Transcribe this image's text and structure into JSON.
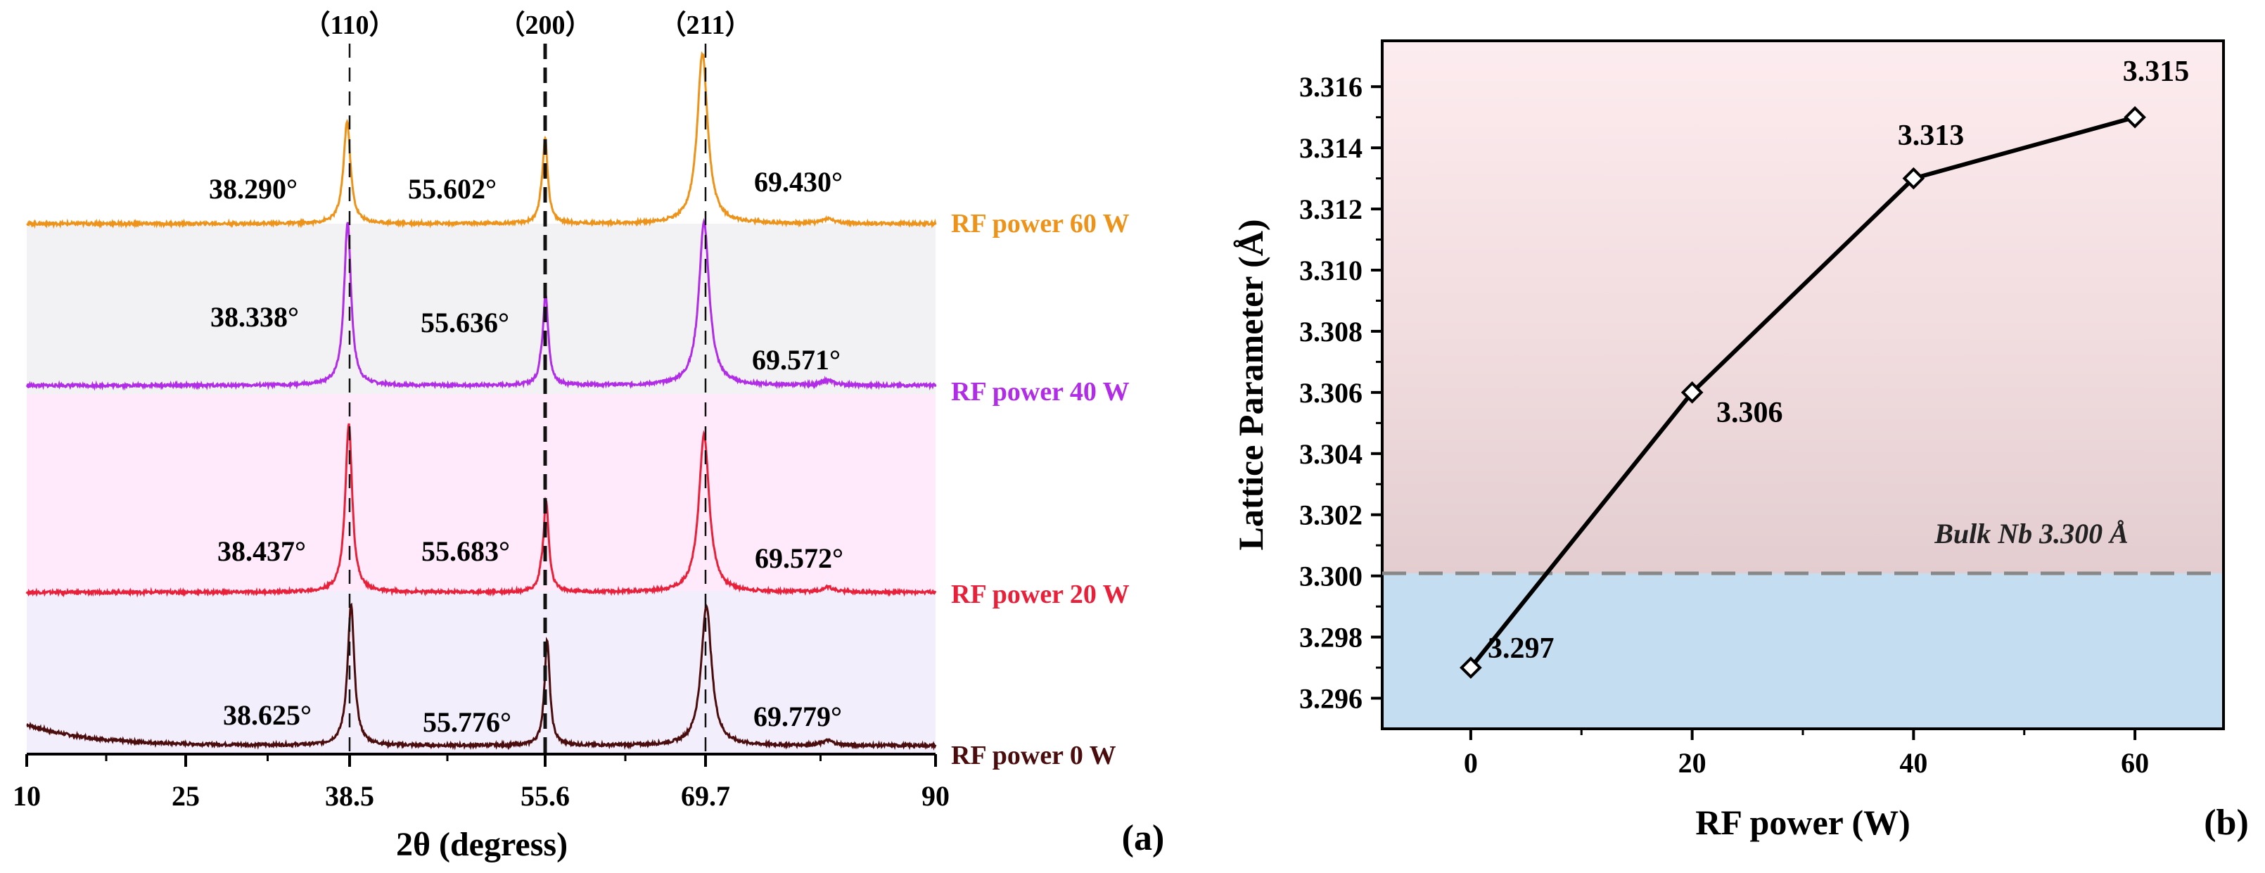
{
  "chart_data": [
    {
      "type": "line",
      "panel_label": "(a)",
      "xlabel": "2θ (degress)",
      "xlim": [
        10,
        90
      ],
      "xticks": [
        10,
        25,
        38.5,
        55.6,
        69.7,
        90
      ],
      "xtick_labels": [
        "10",
        "25",
        "38.5",
        "55.6",
        "69.7",
        "90"
      ],
      "reference_lines": [
        {
          "x": 38.5,
          "label": "（110）",
          "style": "dashed-thin"
        },
        {
          "x": 55.6,
          "label": "（200）",
          "style": "dashed-bold"
        },
        {
          "x": 69.7,
          "label": "（211）",
          "style": "dashed-thin"
        }
      ],
      "series": [
        {
          "name": "RF power 0 W",
          "color": "#4a0c0c",
          "band": "#f3eefb",
          "peaks": [
            38.625,
            55.776,
            69.779
          ],
          "peak_labels": [
            "38.625°",
            "55.776°",
            "69.779°"
          ]
        },
        {
          "name": "RF power 20 W",
          "color": "#e8203a",
          "band": "#ffeafb",
          "peaks": [
            38.437,
            55.683,
            69.572
          ],
          "peak_labels": [
            "38.437°",
            "55.683°",
            "69.572°"
          ]
        },
        {
          "name": "RF power 40 W",
          "color": "#b12ce6",
          "band": "#f2f2f4",
          "peaks": [
            38.338,
            55.636,
            69.571
          ],
          "peak_labels": [
            "38.338°",
            "55.636°",
            "69.571°"
          ]
        },
        {
          "name": "RF power 60 W",
          "color": "#ee931a",
          "band": "#ffffff",
          "peaks": [
            38.29,
            55.602,
            69.43
          ],
          "peak_labels": [
            "38.290°",
            "55.602°",
            "69.430°"
          ]
        }
      ]
    },
    {
      "type": "line",
      "panel_label": "(b)",
      "xlabel": "RF power (W)",
      "ylabel": "Lattice Parameter (Å)",
      "xlim": [
        -8,
        68
      ],
      "ylim": [
        3.295,
        3.3175
      ],
      "xticks": [
        0,
        20,
        40,
        60
      ],
      "yticks": [
        3.296,
        3.298,
        3.3,
        3.302,
        3.304,
        3.306,
        3.308,
        3.31,
        3.312,
        3.314,
        3.316
      ],
      "ytick_labels": [
        "3.296",
        "3.298",
        "3.300",
        "3.302",
        "3.304",
        "3.306",
        "3.308",
        "3.310",
        "3.312",
        "3.314",
        "3.316"
      ],
      "x": [
        0,
        20,
        40,
        60
      ],
      "y": [
        3.297,
        3.306,
        3.313,
        3.315
      ],
      "point_labels": [
        "3.297",
        "3.306",
        "3.313",
        "3.315"
      ],
      "reference": {
        "y": 3.3,
        "label": "Bulk Nb 3.300 Å"
      }
    }
  ]
}
